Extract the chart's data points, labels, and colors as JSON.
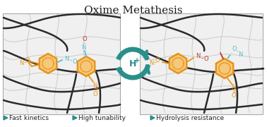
{
  "title": "Oxime Metathesis",
  "title_fontsize": 11,
  "title_color": "#1a1a1a",
  "bg_color": "#ffffff",
  "panel_bg": "#f0f0f0",
  "panel_border": "#aaaaaa",
  "teal_color": "#2a8f8a",
  "orange_color": "#e8951a",
  "red_color": "#c0392b",
  "cyan_color": "#5bbccc",
  "legend_items": [
    "Fast kinetics",
    "High tunability",
    "Hydrolysis resistance"
  ],
  "legend_fontsize": 6.5,
  "hp_label": "H",
  "network_dark": "#2a2a2a",
  "network_gray": "#bbbbbb"
}
